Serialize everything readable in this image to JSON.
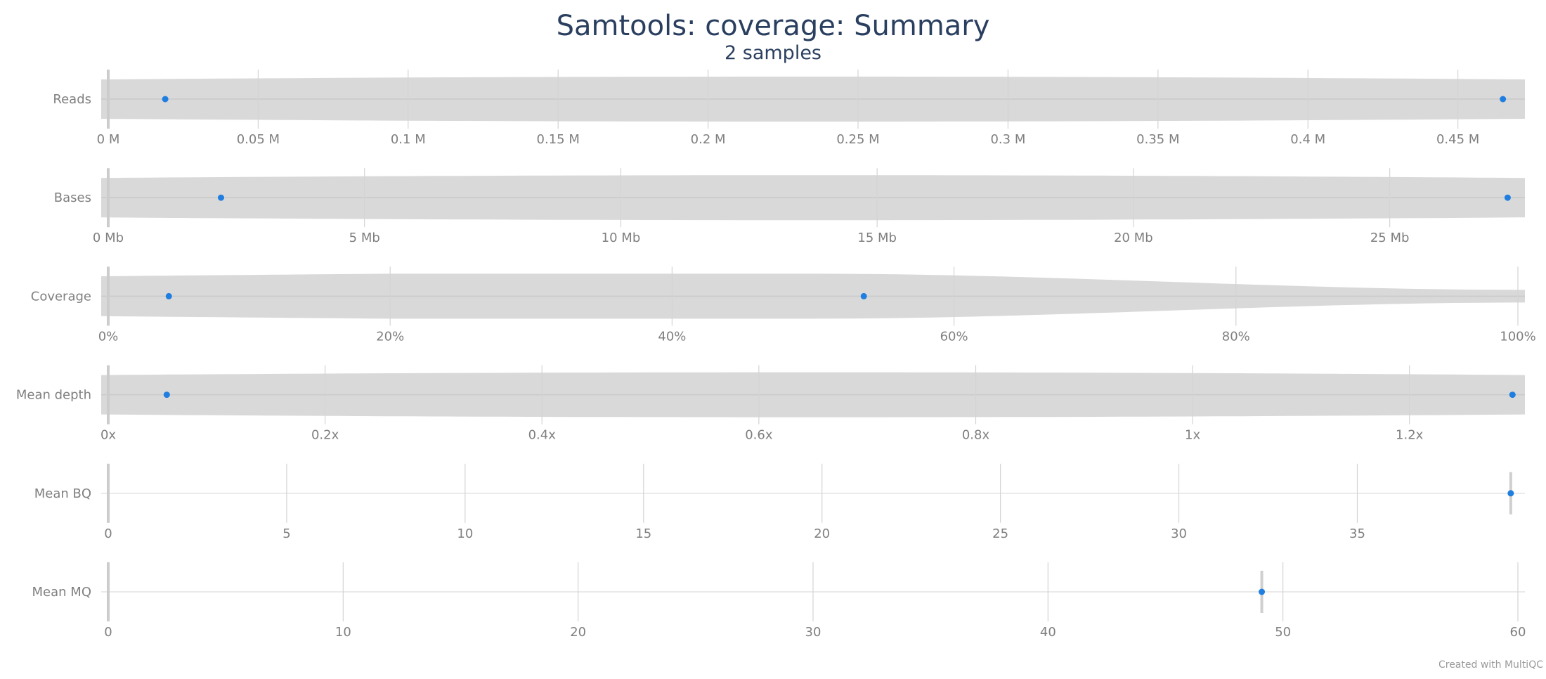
{
  "title": "Samtools: coverage: Summary",
  "subtitle": "2 samples",
  "credit": "Created with MultiQC",
  "colors": {
    "point": "#1f7ee0",
    "violin": "#d9d9d9",
    "grid": "#e3e3e3",
    "text": "#7f7f7f",
    "title": "#2a3f5f"
  },
  "chart_data": {
    "type": "violin",
    "panels": [
      {
        "label": "Reads",
        "xlim": [
          0,
          0.47
        ],
        "ticks": [
          0,
          0.05,
          0.1,
          0.15,
          0.2,
          0.25,
          0.3,
          0.35,
          0.4,
          0.45
        ],
        "tick_labels": [
          "0 M",
          "0.05 M",
          "0.1 M",
          "0.15 M",
          "0.2 M",
          "0.25 M",
          "0.3 M",
          "0.35 M",
          "0.4 M",
          "0.45 M"
        ],
        "values": [
          0.019,
          0.465
        ],
        "violin": true
      },
      {
        "label": "Bases",
        "xlim": [
          0,
          27.5
        ],
        "ticks": [
          0,
          5,
          10,
          15,
          20,
          25
        ],
        "tick_labels": [
          "0 Mb",
          "5 Mb",
          "10 Mb",
          "15 Mb",
          "20 Mb",
          "25 Mb"
        ],
        "values": [
          2.2,
          27.3
        ],
        "violin": true
      },
      {
        "label": "Coverage",
        "xlim": [
          0,
          100
        ],
        "ticks": [
          0,
          20,
          40,
          60,
          80,
          100
        ],
        "tick_labels": [
          "0%",
          "20%",
          "40%",
          "60%",
          "80%",
          "100%"
        ],
        "values": [
          4.3,
          53.6
        ],
        "violin": true
      },
      {
        "label": "Mean depth",
        "xlim": [
          0,
          1.3
        ],
        "ticks": [
          0,
          0.2,
          0.4,
          0.6,
          0.8,
          1.0,
          1.2
        ],
        "tick_labels": [
          "0x",
          "0.2x",
          "0.4x",
          "0.6x",
          "0.8x",
          "1x",
          "1.2x"
        ],
        "values": [
          0.054,
          1.295
        ],
        "violin": true
      },
      {
        "label": "Mean BQ",
        "xlim": [
          0,
          39.5
        ],
        "ticks": [
          0,
          5,
          10,
          15,
          20,
          25,
          30,
          35
        ],
        "tick_labels": [
          "0",
          "5",
          "10",
          "15",
          "20",
          "25",
          "30",
          "35"
        ],
        "values": [
          39.3
        ],
        "violin": false
      },
      {
        "label": "Mean MQ",
        "xlim": [
          0,
          60
        ],
        "ticks": [
          0,
          10,
          20,
          30,
          40,
          50,
          60
        ],
        "tick_labels": [
          "0",
          "10",
          "20",
          "30",
          "40",
          "50",
          "60"
        ],
        "values": [
          49.1
        ],
        "violin": false
      }
    ]
  }
}
